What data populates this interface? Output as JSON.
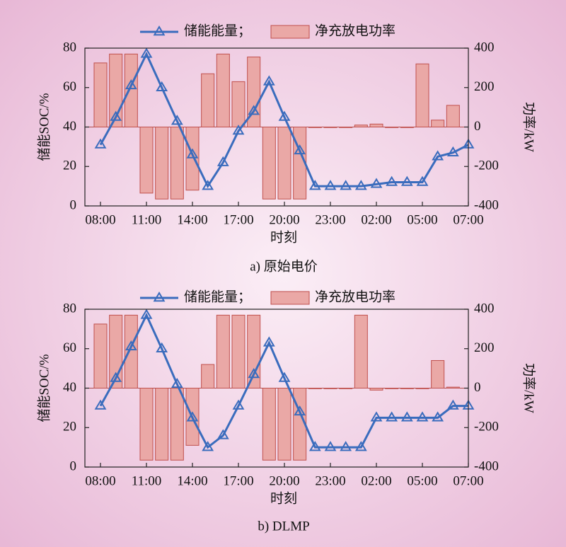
{
  "chart_data": [
    {
      "type": "combo",
      "title": "a) 原始电价",
      "x_label": "时刻",
      "y_label": "储能SOC/%",
      "y2_label": "功率/kW",
      "categories": [
        "08:00",
        null,
        null,
        "11:00",
        null,
        null,
        "14:00",
        null,
        null,
        "17:00",
        null,
        null,
        "20:00",
        null,
        null,
        "23:00",
        null,
        null,
        "02:00",
        null,
        null,
        "05:00",
        null,
        null,
        "07:00"
      ],
      "series": [
        {
          "name": "储能能量；",
          "type": "line",
          "color": "#3a6cbd",
          "values": [
            31,
            45,
            61,
            77,
            60,
            43,
            26,
            10,
            22,
            38,
            48,
            63,
            45,
            28,
            10,
            10,
            10,
            10,
            11,
            12,
            12,
            12,
            25,
            27,
            31
          ]
        },
        {
          "name": "净充放电功率",
          "type": "bar",
          "axis": "y2",
          "color": "#eaa8a6",
          "values": [
            325,
            370,
            370,
            -335,
            -365,
            -365,
            -320,
            270,
            370,
            230,
            355,
            -365,
            -365,
            -365,
            0,
            0,
            0,
            10,
            15,
            0,
            0,
            320,
            35,
            110,
            null
          ]
        }
      ],
      "ylim": [
        0,
        80
      ],
      "yticks": [
        0,
        20,
        40,
        60,
        80
      ],
      "y2lim": [
        -400,
        400
      ],
      "y2ticks": [
        -400,
        -200,
        0,
        200,
        400
      ]
    },
    {
      "type": "combo",
      "title": "b) DLMP",
      "x_label": "时刻",
      "y_label": "储能SOC/%",
      "y2_label": "功率/kW",
      "categories": [
        "08:00",
        null,
        null,
        "11:00",
        null,
        null,
        "14:00",
        null,
        null,
        "17:00",
        null,
        null,
        "20:00",
        null,
        null,
        "23:00",
        null,
        null,
        "02:00",
        null,
        null,
        "05:00",
        null,
        null,
        "07:00"
      ],
      "series": [
        {
          "name": "储能能量；",
          "type": "line",
          "color": "#3a6cbd",
          "values": [
            31,
            45,
            61,
            77,
            60,
            42,
            25,
            10,
            16,
            31,
            47,
            63,
            45,
            28,
            10,
            10,
            10,
            10,
            25,
            25,
            25,
            25,
            25,
            31,
            31
          ]
        },
        {
          "name": "净充放电功率",
          "type": "bar",
          "axis": "y2",
          "color": "#eaa8a6",
          "values": [
            325,
            370,
            370,
            -365,
            -365,
            -365,
            -290,
            120,
            370,
            370,
            370,
            -365,
            -365,
            -365,
            0,
            0,
            0,
            370,
            -10,
            0,
            0,
            0,
            140,
            5,
            null
          ]
        }
      ],
      "ylim": [
        0,
        80
      ],
      "yticks": [
        0,
        20,
        40,
        60,
        80
      ],
      "y2lim": [
        -400,
        400
      ],
      "y2ticks": [
        -400,
        -200,
        0,
        200,
        400
      ]
    }
  ]
}
